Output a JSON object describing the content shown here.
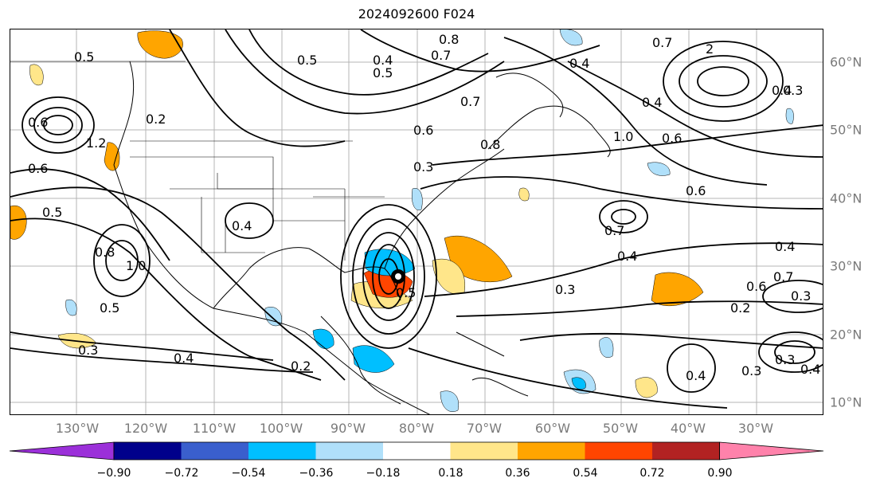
{
  "title": "2024092600 F024",
  "lon_labels": [
    "130°W",
    "120°W",
    "110°W",
    "100°W",
    "90°W",
    "80°W",
    "70°W",
    "60°W",
    "50°W",
    "40°W",
    "30°W"
  ],
  "lat_labels": [
    "60°N",
    "50°N",
    "40°N",
    "30°N",
    "20°N",
    "10°N"
  ],
  "colorbar": {
    "ticks": [
      "−0.90",
      "−0.72",
      "−0.54",
      "−0.36",
      "−0.18",
      "0.18",
      "0.36",
      "0.54",
      "0.72",
      "0.90"
    ],
    "colors": [
      "#9b30d9",
      "#00008b",
      "#3a5fcd",
      "#00bfff",
      "#b0e0fa",
      "#ffffff",
      "#ffe68a",
      "#ffa500",
      "#ff4500",
      "#b22222",
      "#ff82ab"
    ]
  },
  "contour_labels": [
    {
      "text": "0.8"
    },
    {
      "text": "0.7"
    },
    {
      "text": "0.4"
    },
    {
      "text": "0.5"
    },
    {
      "text": "0.7"
    },
    {
      "text": "2"
    },
    {
      "text": "0.4"
    },
    {
      "text": "0.3"
    },
    {
      "text": "1.0"
    },
    {
      "text": "0.8"
    },
    {
      "text": "0.4"
    },
    {
      "text": "0.6"
    },
    {
      "text": "0.6"
    },
    {
      "text": "0.7"
    },
    {
      "text": "0.4"
    },
    {
      "text": "0.4"
    },
    {
      "text": "0.6"
    },
    {
      "text": "0.3"
    },
    {
      "text": "0.7"
    },
    {
      "text": "0.2"
    },
    {
      "text": "0.3"
    },
    {
      "text": "0.4"
    },
    {
      "text": "0.3"
    },
    {
      "text": "0.4"
    },
    {
      "text": "0.2"
    },
    {
      "text": "0.5"
    },
    {
      "text": "0.3"
    },
    {
      "text": "0.4"
    },
    {
      "text": "0.5"
    },
    {
      "text": "0.6"
    },
    {
      "text": "0.8"
    },
    {
      "text": "1.0"
    },
    {
      "text": "0.2"
    },
    {
      "text": "0.6"
    },
    {
      "text": "0.5"
    },
    {
      "text": "1.2"
    },
    {
      "text": "0.3"
    },
    {
      "text": "0.4"
    },
    {
      "text": "0.7"
    },
    {
      "text": "0.5"
    },
    {
      "text": "0.3"
    },
    {
      "text": "0.6"
    },
    {
      "text": "0.5"
    }
  ],
  "axis_color": "#7a7a7a"
}
